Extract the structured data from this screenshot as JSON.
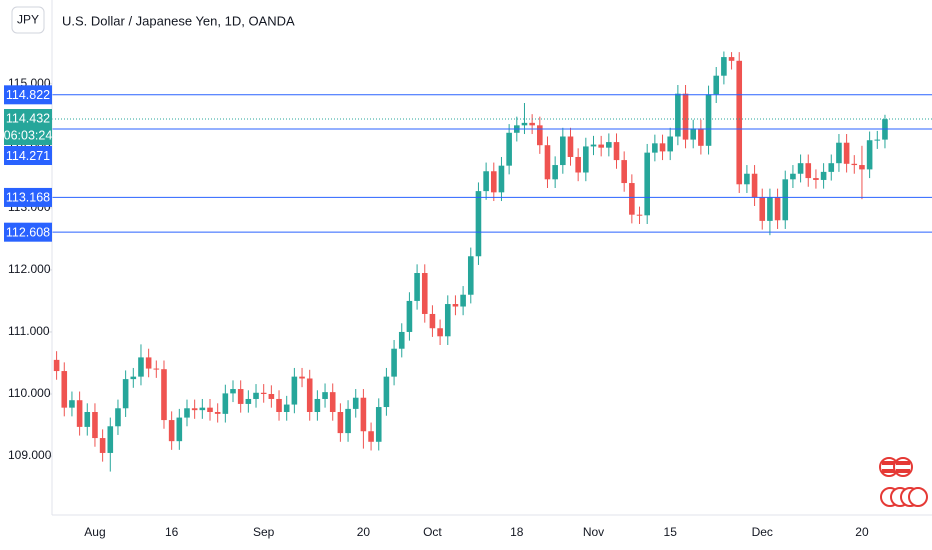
{
  "chart_data": {
    "type": "candlestick",
    "title": "U.S. Dollar / Japanese Yen, 1D, OANDA",
    "currency": "JPY",
    "categories": [
      null,
      null,
      null,
      null,
      null,
      "Aug",
      null,
      null,
      null,
      null,
      null,
      null,
      null,
      null,
      null,
      "16",
      null,
      null,
      null,
      null,
      null,
      null,
      null,
      null,
      null,
      null,
      null,
      "Sep",
      null,
      null,
      null,
      null,
      null,
      null,
      null,
      null,
      null,
      null,
      null,
      null,
      "20",
      null,
      null,
      null,
      null,
      null,
      null,
      null,
      null,
      "Oct",
      null,
      null,
      null,
      null,
      null,
      null,
      null,
      null,
      null,
      null,
      "18",
      null,
      null,
      null,
      null,
      null,
      null,
      null,
      null,
      null,
      "Nov",
      null,
      null,
      null,
      null,
      null,
      null,
      null,
      null,
      null,
      "15",
      null,
      null,
      null,
      null,
      null,
      null,
      null,
      null,
      null,
      null,
      null,
      "Dec",
      null,
      null,
      null,
      null,
      null,
      null,
      null,
      null,
      null,
      null,
      null,
      null,
      "20",
      null,
      null,
      null
    ],
    "open": [
      110.55,
      110.37,
      109.78,
      109.9,
      109.47,
      109.71,
      109.29,
      109.05,
      109.48,
      109.77,
      110.24,
      110.28,
      110.59,
      110.41,
      110.4,
      109.58,
      109.24,
      109.62,
      109.77,
      109.74,
      109.78,
      109.71,
      109.68,
      110.01,
      110.08,
      109.84,
      109.92,
      110.02,
      110.0,
      109.92,
      109.71,
      109.83,
      110.28,
      110.25,
      109.71,
      109.92,
      110.03,
      109.71,
      109.37,
      109.76,
      109.94,
      109.4,
      109.23,
      109.79,
      110.28,
      110.73,
      111.0,
      111.5,
      111.95,
      111.29,
      111.06,
      110.93,
      111.45,
      111.41,
      111.6,
      112.22,
      113.27,
      113.59,
      113.25,
      113.68,
      114.21,
      114.33,
      114.37,
      114.33,
      114.01,
      113.46,
      113.69,
      114.15,
      113.82,
      113.57,
      113.99,
      114.02,
      113.97,
      114.06,
      113.77,
      113.4,
      112.89,
      112.88,
      113.89,
      114.04,
      113.91,
      114.15,
      114.84,
      114.1,
      114.28,
      114.0,
      114.83,
      115.13,
      115.43,
      115.37,
      113.38,
      113.55,
      113.17,
      112.79,
      113.17,
      112.8,
      113.46,
      113.55,
      113.72,
      113.48,
      113.45,
      113.58,
      113.72,
      114.05,
      113.71,
      113.69,
      113.62,
      114.09,
      114.1
    ],
    "high": [
      110.69,
      110.51,
      110.04,
      110.04,
      109.85,
      109.85,
      109.43,
      109.62,
      109.91,
      110.38,
      110.42,
      110.8,
      110.73,
      110.54,
      110.54,
      109.72,
      109.76,
      109.91,
      109.91,
      109.92,
      109.92,
      109.85,
      110.15,
      110.22,
      110.22,
      110.06,
      110.16,
      110.16,
      110.14,
      110.06,
      109.97,
      110.42,
      110.42,
      110.39,
      110.06,
      110.17,
      110.17,
      109.85,
      109.9,
      110.08,
      110.08,
      109.54,
      109.93,
      110.42,
      110.87,
      111.14,
      111.64,
      112.09,
      112.09,
      111.43,
      111.2,
      111.59,
      111.59,
      111.74,
      112.36,
      113.41,
      113.73,
      113.73,
      113.82,
      114.35,
      114.47,
      114.69,
      114.51,
      114.47,
      114.15,
      113.83,
      114.29,
      114.29,
      113.96,
      114.13,
      114.16,
      114.16,
      114.2,
      114.2,
      113.91,
      113.54,
      113.02,
      114.03,
      114.18,
      114.18,
      114.29,
      114.98,
      114.98,
      114.42,
      114.42,
      114.97,
      115.27,
      115.52,
      115.51,
      115.51,
      113.69,
      113.69,
      113.31,
      113.31,
      113.31,
      113.6,
      113.69,
      113.86,
      113.86,
      113.62,
      113.72,
      113.86,
      114.19,
      114.19,
      113.85,
      114.0,
      114.23,
      114.24,
      114.5
    ],
    "low": [
      110.23,
      109.64,
      109.64,
      109.33,
      109.33,
      109.15,
      108.91,
      108.75,
      109.34,
      109.63,
      110.1,
      110.14,
      110.27,
      110.26,
      109.44,
      109.1,
      109.1,
      109.48,
      109.6,
      109.6,
      109.57,
      109.54,
      109.54,
      109.87,
      109.7,
      109.7,
      109.78,
      109.86,
      109.78,
      109.57,
      109.57,
      109.69,
      110.11,
      109.57,
      109.57,
      109.78,
      109.57,
      109.23,
      109.23,
      109.62,
      109.12,
      109.09,
      109.09,
      109.65,
      110.14,
      110.59,
      110.86,
      111.36,
      111.15,
      110.92,
      110.79,
      110.79,
      111.27,
      111.27,
      111.46,
      112.08,
      113.13,
      113.11,
      113.11,
      113.54,
      114.07,
      114.19,
      114.19,
      113.87,
      113.32,
      113.32,
      113.55,
      113.68,
      113.43,
      113.43,
      113.85,
      113.83,
      113.83,
      113.63,
      113.26,
      112.75,
      112.74,
      112.74,
      113.75,
      113.77,
      113.77,
      114.01,
      113.96,
      113.96,
      113.86,
      113.86,
      114.69,
      114.99,
      115.23,
      113.24,
      113.24,
      113.03,
      112.65,
      112.56,
      112.66,
      112.66,
      113.32,
      113.41,
      113.34,
      113.31,
      113.31,
      113.44,
      113.58,
      113.57,
      113.55,
      113.14,
      113.48,
      113.95,
      113.96
    ],
    "close": [
      110.37,
      109.78,
      109.9,
      109.47,
      109.71,
      109.29,
      109.05,
      109.48,
      109.77,
      110.24,
      110.28,
      110.59,
      110.41,
      110.4,
      109.58,
      109.24,
      109.62,
      109.77,
      109.74,
      109.78,
      109.71,
      109.68,
      110.01,
      110.08,
      109.84,
      109.92,
      110.02,
      110.0,
      109.92,
      109.71,
      109.83,
      110.28,
      110.25,
      109.71,
      109.92,
      110.03,
      109.71,
      109.37,
      109.76,
      109.94,
      109.4,
      109.23,
      109.79,
      110.28,
      110.73,
      111.0,
      111.5,
      111.95,
      111.29,
      111.06,
      110.93,
      111.45,
      111.41,
      111.6,
      112.22,
      113.27,
      113.59,
      113.25,
      113.68,
      114.21,
      114.33,
      114.37,
      114.33,
      114.01,
      113.46,
      113.69,
      114.15,
      113.82,
      113.57,
      113.99,
      114.02,
      113.97,
      114.06,
      113.77,
      113.4,
      112.89,
      112.88,
      113.89,
      114.04,
      113.91,
      114.15,
      114.84,
      114.1,
      114.28,
      114.0,
      114.83,
      115.13,
      115.43,
      115.37,
      113.38,
      113.55,
      113.17,
      112.79,
      113.17,
      112.8,
      113.46,
      113.55,
      113.72,
      113.48,
      113.45,
      113.58,
      113.72,
      114.05,
      113.71,
      113.69,
      113.62,
      114.09,
      114.1,
      114.43
    ],
    "up_color": "#26a69a",
    "down_color": "#ef5350",
    "ylim": [
      108.05,
      116.35
    ],
    "yticks": [
      {
        "value": 109,
        "label": "109.000"
      },
      {
        "value": 110,
        "label": "110.000"
      },
      {
        "value": 111,
        "label": "111.000"
      },
      {
        "value": 112,
        "label": "112.000"
      },
      {
        "value": 113,
        "label": "113.000"
      },
      {
        "value": 114,
        "label": "114.000"
      },
      {
        "value": 115,
        "label": "115.000"
      }
    ],
    "grid": false,
    "price_lines": [
      {
        "value": 114.822,
        "color": "#2962ff"
      },
      {
        "value": 114.271,
        "color": "#2962ff"
      },
      {
        "value": 113.168,
        "color": "#2962ff"
      },
      {
        "value": 112.608,
        "color": "#2962ff"
      }
    ],
    "last_price": {
      "value": 114.432,
      "countdown": "06:03:24",
      "color": "#26a69a"
    }
  }
}
